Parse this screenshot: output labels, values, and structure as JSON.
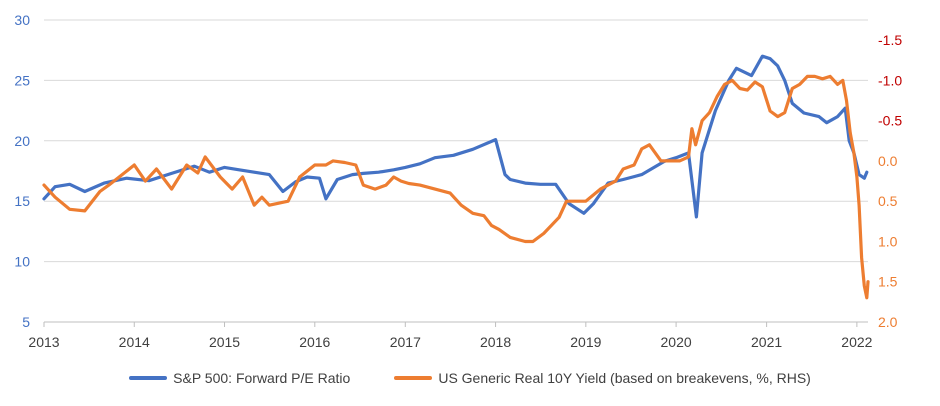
{
  "chart_data": {
    "type": "line",
    "title": "",
    "x_ticks": [
      "2013",
      "2014",
      "2015",
      "2016",
      "2017",
      "2018",
      "2019",
      "2020",
      "2021",
      "2022"
    ],
    "xlim": [
      "2013-01-01",
      "2022-02-15"
    ],
    "y_left": {
      "lim": [
        5,
        30
      ],
      "ticks": [
        "5",
        "10",
        "15",
        "20",
        "25",
        "30"
      ],
      "color": "#4472C4"
    },
    "y_right": {
      "lim": [
        2.0,
        -1.75
      ],
      "inverted": true,
      "ticks": [
        "2.0",
        "1.5",
        "1.0",
        "0.5",
        "0.0",
        "-0.5",
        "-1.0",
        "-1.5"
      ],
      "color_negative": "#C00000",
      "color_positive": "#ED7D31"
    },
    "grid": "horizontal",
    "legend_position": "bottom",
    "series": [
      {
        "name": "S&P 500: Forward P/E Ratio",
        "axis": "left",
        "color": "#4472C4",
        "points": [
          [
            "2013-01-01",
            15.2
          ],
          [
            "2013-02-15",
            16.2
          ],
          [
            "2013-04-15",
            16.4
          ],
          [
            "2013-06-15",
            15.8
          ],
          [
            "2013-09-01",
            16.5
          ],
          [
            "2013-12-01",
            16.9
          ],
          [
            "2014-03-01",
            16.7
          ],
          [
            "2014-06-01",
            17.3
          ],
          [
            "2014-09-01",
            17.9
          ],
          [
            "2014-11-01",
            17.4
          ],
          [
            "2015-01-01",
            17.8
          ],
          [
            "2015-03-01",
            17.6
          ],
          [
            "2015-05-01",
            17.4
          ],
          [
            "2015-07-01",
            17.2
          ],
          [
            "2015-08-25",
            15.8
          ],
          [
            "2015-10-15",
            16.6
          ],
          [
            "2015-12-01",
            17.0
          ],
          [
            "2016-01-20",
            16.9
          ],
          [
            "2016-02-15",
            15.2
          ],
          [
            "2016-04-01",
            16.8
          ],
          [
            "2016-06-01",
            17.2
          ],
          [
            "2016-07-15",
            17.3
          ],
          [
            "2016-09-15",
            17.4
          ],
          [
            "2016-11-15",
            17.6
          ],
          [
            "2017-01-01",
            17.8
          ],
          [
            "2017-03-01",
            18.1
          ],
          [
            "2017-05-01",
            18.6
          ],
          [
            "2017-07-15",
            18.8
          ],
          [
            "2017-10-01",
            19.3
          ],
          [
            "2018-01-01",
            20.1
          ],
          [
            "2018-02-08",
            17.2
          ],
          [
            "2018-03-01",
            16.8
          ],
          [
            "2018-05-01",
            16.5
          ],
          [
            "2018-07-01",
            16.4
          ],
          [
            "2018-09-01",
            16.4
          ],
          [
            "2018-10-25",
            14.8
          ],
          [
            "2018-12-24",
            14.0
          ],
          [
            "2019-02-01",
            14.8
          ],
          [
            "2019-04-01",
            16.5
          ],
          [
            "2019-06-01",
            16.8
          ],
          [
            "2019-08-15",
            17.2
          ],
          [
            "2019-11-15",
            18.3
          ],
          [
            "2020-01-01",
            18.6
          ],
          [
            "2020-02-20",
            19.0
          ],
          [
            "2020-03-23",
            13.7
          ],
          [
            "2020-04-15",
            19.0
          ],
          [
            "2020-06-08",
            22.5
          ],
          [
            "2020-08-01",
            25.0
          ],
          [
            "2020-09-01",
            26.0
          ],
          [
            "2020-11-01",
            25.4
          ],
          [
            "2020-12-15",
            27.0
          ],
          [
            "2021-01-15",
            26.8
          ],
          [
            "2021-02-15",
            26.2
          ],
          [
            "2021-03-15",
            25.0
          ],
          [
            "2021-04-15",
            23.1
          ],
          [
            "2021-06-01",
            22.3
          ],
          [
            "2021-08-01",
            22.0
          ],
          [
            "2021-09-01",
            21.5
          ],
          [
            "2021-10-15",
            22.0
          ],
          [
            "2021-11-15",
            22.7
          ],
          [
            "2021-12-01",
            20.0
          ],
          [
            "2021-12-20",
            19.0
          ],
          [
            "2022-01-10",
            17.2
          ],
          [
            "2022-01-31",
            16.9
          ],
          [
            "2022-02-10",
            17.4
          ]
        ]
      },
      {
        "name": "US Generic Real 10Y Yield (based on breakevens, %, RHS)",
        "axis": "right",
        "color": "#ED7D31",
        "points": [
          [
            "2013-01-01",
            0.3
          ],
          [
            "2013-02-15",
            0.45
          ],
          [
            "2013-04-15",
            0.6
          ],
          [
            "2013-06-15",
            0.62
          ],
          [
            "2013-08-15",
            0.38
          ],
          [
            "2013-09-20",
            0.3
          ],
          [
            "2013-11-01",
            0.2
          ],
          [
            "2014-01-01",
            0.05
          ],
          [
            "2014-02-15",
            0.25
          ],
          [
            "2014-04-01",
            0.1
          ],
          [
            "2014-06-01",
            0.35
          ],
          [
            "2014-08-01",
            0.05
          ],
          [
            "2014-09-15",
            0.15
          ],
          [
            "2014-10-15",
            -0.05
          ],
          [
            "2014-12-15",
            0.2
          ],
          [
            "2015-02-01",
            0.35
          ],
          [
            "2015-03-15",
            0.2
          ],
          [
            "2015-05-01",
            0.55
          ],
          [
            "2015-06-01",
            0.45
          ],
          [
            "2015-07-01",
            0.55
          ],
          [
            "2015-09-15",
            0.5
          ],
          [
            "2015-11-01",
            0.2
          ],
          [
            "2016-01-01",
            0.05
          ],
          [
            "2016-02-15",
            0.05
          ],
          [
            "2016-03-15",
            0.0
          ],
          [
            "2016-05-01",
            0.02
          ],
          [
            "2016-06-15",
            0.05
          ],
          [
            "2016-07-15",
            0.3
          ],
          [
            "2016-09-01",
            0.35
          ],
          [
            "2016-10-15",
            0.3
          ],
          [
            "2016-11-15",
            0.2
          ],
          [
            "2016-12-15",
            0.25
          ],
          [
            "2017-01-15",
            0.28
          ],
          [
            "2017-03-01",
            0.3
          ],
          [
            "2017-05-01",
            0.35
          ],
          [
            "2017-07-01",
            0.4
          ],
          [
            "2017-08-15",
            0.55
          ],
          [
            "2017-10-01",
            0.65
          ],
          [
            "2017-11-15",
            0.68
          ],
          [
            "2017-12-15",
            0.8
          ],
          [
            "2018-01-15",
            0.85
          ],
          [
            "2018-03-01",
            0.95
          ],
          [
            "2018-05-01",
            1.0
          ],
          [
            "2018-06-01",
            1.0
          ],
          [
            "2018-07-15",
            0.9
          ],
          [
            "2018-09-15",
            0.7
          ],
          [
            "2018-10-15",
            0.5
          ],
          [
            "2018-11-15",
            0.5
          ],
          [
            "2019-01-01",
            0.5
          ],
          [
            "2019-03-01",
            0.35
          ],
          [
            "2019-05-01",
            0.25
          ],
          [
            "2019-06-01",
            0.1
          ],
          [
            "2019-07-15",
            0.05
          ],
          [
            "2019-08-15",
            -0.15
          ],
          [
            "2019-09-15",
            -0.2
          ],
          [
            "2019-11-01",
            0.0
          ],
          [
            "2019-12-01",
            0.0
          ],
          [
            "2020-01-15",
            0.0
          ],
          [
            "2020-02-20",
            -0.05
          ],
          [
            "2020-03-05",
            -0.4
          ],
          [
            "2020-03-20",
            -0.2
          ],
          [
            "2020-04-15",
            -0.5
          ],
          [
            "2020-05-15",
            -0.6
          ],
          [
            "2020-06-15",
            -0.8
          ],
          [
            "2020-07-15",
            -0.95
          ],
          [
            "2020-08-15",
            -1.0
          ],
          [
            "2020-09-15",
            -0.9
          ],
          [
            "2020-10-15",
            -0.88
          ],
          [
            "2020-11-15",
            -0.98
          ],
          [
            "2020-12-15",
            -0.92
          ],
          [
            "2021-01-15",
            -0.62
          ],
          [
            "2021-02-15",
            -0.55
          ],
          [
            "2021-03-15",
            -0.6
          ],
          [
            "2021-04-15",
            -0.9
          ],
          [
            "2021-05-15",
            -0.95
          ],
          [
            "2021-06-15",
            -1.05
          ],
          [
            "2021-07-15",
            -1.05
          ],
          [
            "2021-08-15",
            -1.02
          ],
          [
            "2021-09-15",
            -1.05
          ],
          [
            "2021-10-15",
            -0.95
          ],
          [
            "2021-11-05",
            -1.0
          ],
          [
            "2021-11-20",
            -0.75
          ],
          [
            "2021-12-05",
            -0.35
          ],
          [
            "2021-12-20",
            -0.1
          ],
          [
            "2022-01-01",
            0.2
          ],
          [
            "2022-01-10",
            0.55
          ],
          [
            "2022-01-20",
            1.2
          ],
          [
            "2022-01-31",
            1.55
          ],
          [
            "2022-02-10",
            1.7
          ],
          [
            "2022-02-15",
            1.5
          ]
        ]
      }
    ]
  }
}
